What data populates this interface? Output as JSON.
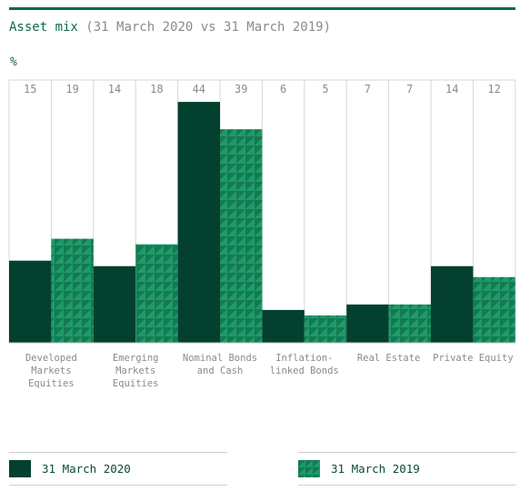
{
  "colors": {
    "series_2020": "#04402f",
    "series_2019": "#1f9a6a",
    "series_2019_pattern": "#147a52",
    "accent": "#006b4e",
    "muted_text": "#8a8a8a"
  },
  "header": {
    "title_main": "Asset mix",
    "title_sub": "(31 March 2020 vs 31 March 2019)",
    "unit": "%"
  },
  "chart_data": {
    "type": "bar",
    "categories": [
      [
        "Developed",
        "Markets",
        "Equities"
      ],
      [
        "Emerging",
        "Markets",
        "Equities"
      ],
      [
        "Nominal Bonds",
        "and Cash"
      ],
      [
        "Inflation-",
        "linked Bonds"
      ],
      [
        "Real Estate"
      ],
      [
        "Private Equity"
      ]
    ],
    "series": [
      {
        "name": "31 March 2020",
        "values": [
          15,
          14,
          44,
          6,
          7,
          14
        ]
      },
      {
        "name": "31 March 2019",
        "values": [
          19,
          18,
          39,
          5,
          7,
          12
        ]
      }
    ],
    "ylim": [
      0,
      48
    ],
    "grid": false,
    "legend": "bottom"
  },
  "legend": {
    "items": [
      {
        "label": "31 March 2020"
      },
      {
        "label": "31 March 2019"
      }
    ]
  }
}
